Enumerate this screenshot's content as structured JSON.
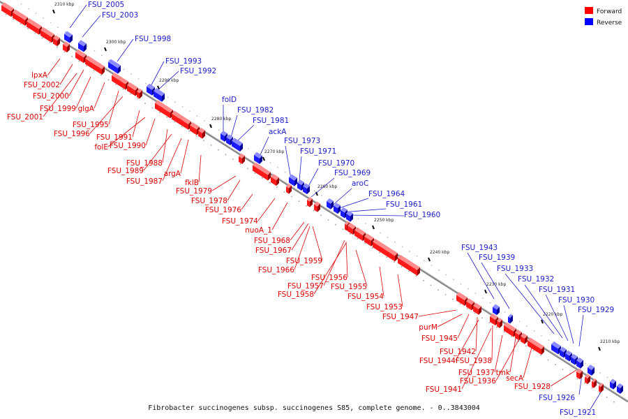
{
  "caption": "Fibrobacter succinogenes subsp. succinogenes S85, complete genome. - 0..3843004",
  "legend": {
    "forward": {
      "label": "Forward",
      "color": "#ff0000"
    },
    "reverse": {
      "label": "Reverse",
      "color": "#0000ff"
    }
  },
  "ticks": [
    "2310 kbp",
    "2300 kbp",
    "2290 kbp",
    "2280 kbp",
    "2270 kbp",
    "2260 kbp",
    "2250 kbp",
    "2240 kbp",
    "2230 kbp",
    "2220 kbp",
    "2210 kbp"
  ],
  "forward_genes": [
    "lpxA",
    "FSU_2002",
    "FSU_2000",
    "FSU_2001",
    "FSU_1999",
    "glgA",
    "FSU_1995",
    "FSU_1996",
    "FSU_1991",
    "folE",
    "FSU_1990",
    "FSU_1988",
    "FSU_1989",
    "FSU_1987",
    "argA",
    "fklB",
    "FSU_1979",
    "FSU_1978",
    "FSU_1976",
    "FSU_1974",
    "nuoA_1",
    "FSU_1968",
    "FSU_1967",
    "FSU_1966",
    "FSU_1959",
    "FSU_1956",
    "FSU_1957",
    "FSU_1958",
    "FSU_1955",
    "FSU_1954",
    "FSU_1953",
    "FSU_1947",
    "purM",
    "FSU_1945",
    "FSU_1942",
    "FSU_1944",
    "FSU_1938",
    "FSU_1937",
    "tmk",
    "FSU_1936",
    "secA",
    "FSU_1941",
    "FSU_1928"
  ],
  "reverse_genes": [
    "FSU_2005",
    "FSU_2003",
    "FSU_1998",
    "FSU_1993",
    "FSU_1992",
    "folD",
    "FSU_1982",
    "FSU_1981",
    "ackA",
    "FSU_1973",
    "FSU_1971",
    "FSU_1970",
    "FSU_1969",
    "aroC",
    "FSU_1964",
    "FSU_1961",
    "FSU_1960",
    "FSU_1943",
    "FSU_1939",
    "FSU_1933",
    "FSU_1932",
    "FSU_1931",
    "FSU_1930",
    "FSU_1929",
    "FSU_1926",
    "FSU_1921"
  ]
}
